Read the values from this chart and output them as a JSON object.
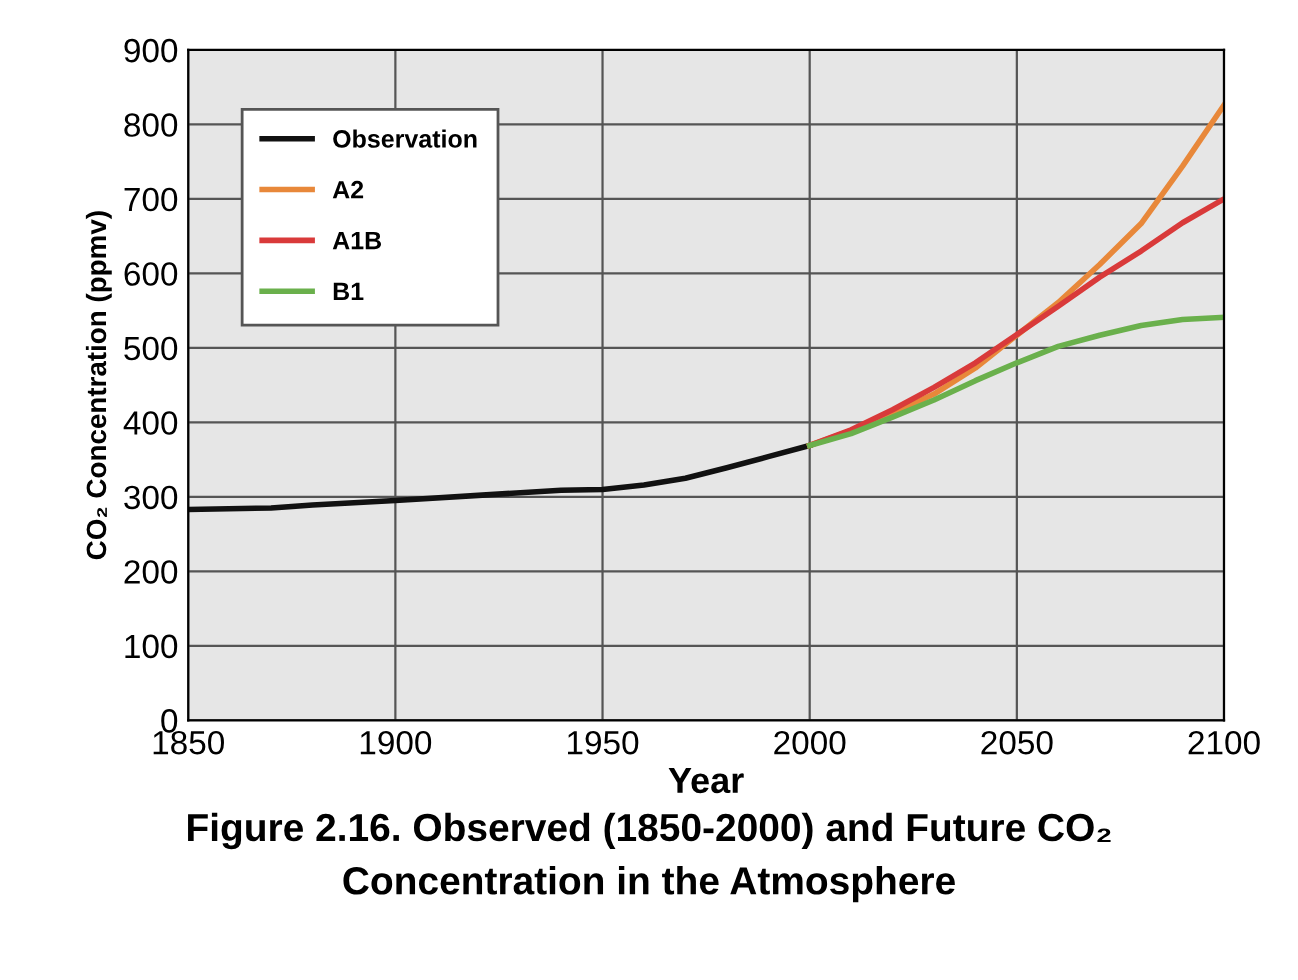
{
  "chart_data": {
    "type": "line",
    "title": "Figure 2.16. Observed (1850-2000) and Future CO₂\nConcentration in the Atmosphere",
    "xlabel": "Year",
    "ylabel": "CO₂ Concentration (ppmv)",
    "xlim": [
      1850,
      2100
    ],
    "xticks": [
      1850,
      1900,
      1950,
      2000,
      2050,
      2100
    ],
    "ylim": [
      0,
      900
    ],
    "yticks": [
      0,
      100,
      200,
      300,
      400,
      500,
      600,
      700,
      800,
      900
    ],
    "grid": true,
    "legend": "top left",
    "marker": "none",
    "line_style": "solid",
    "series": [
      {
        "name": "Observation",
        "color": "#111111",
        "x": [
          1850,
          1870,
          1880,
          1900,
          1920,
          1940,
          1950,
          1960,
          1970,
          1980,
          1990,
          2000
        ],
        "values": [
          283,
          285,
          289,
          295,
          302,
          309,
          310,
          316,
          325,
          339,
          354,
          369
        ]
      },
      {
        "name": "A2",
        "color": "#e8883a",
        "x": [
          2000,
          2010,
          2020,
          2030,
          2040,
          2050,
          2060,
          2070,
          2080,
          2090,
          2100
        ],
        "values": [
          369,
          389,
          412,
          438,
          473,
          517,
          561,
          612,
          667,
          744,
          826
        ]
      },
      {
        "name": "A1B",
        "color": "#d93a3a",
        "x": [
          2000,
          2010,
          2020,
          2030,
          2040,
          2050,
          2060,
          2070,
          2080,
          2090,
          2100
        ],
        "values": [
          369,
          390,
          417,
          447,
          480,
          518,
          556,
          595,
          630,
          668,
          700
        ]
      },
      {
        "name": "B1",
        "color": "#6ab04c",
        "x": [
          2000,
          2010,
          2020,
          2030,
          2040,
          2050,
          2060,
          2070,
          2080,
          2090,
          2100
        ],
        "values": [
          369,
          385,
          407,
          430,
          456,
          480,
          502,
          517,
          530,
          538,
          541
        ]
      }
    ]
  }
}
